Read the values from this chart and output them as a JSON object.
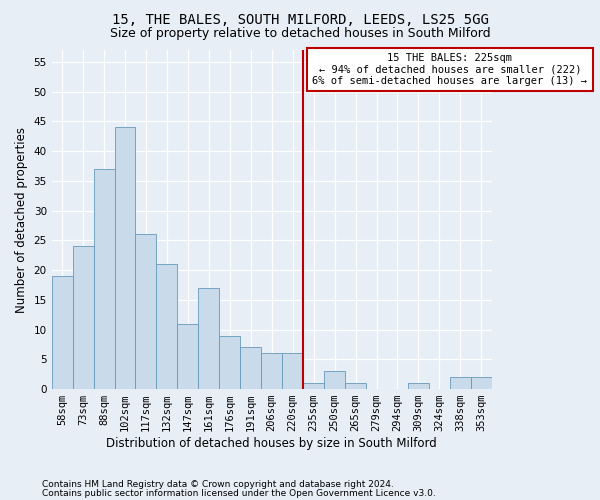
{
  "title1": "15, THE BALES, SOUTH MILFORD, LEEDS, LS25 5GG",
  "title2": "Size of property relative to detached houses in South Milford",
  "xlabel": "Distribution of detached houses by size in South Milford",
  "ylabel": "Number of detached properties",
  "categories": [
    "58sqm",
    "73sqm",
    "88sqm",
    "102sqm",
    "117sqm",
    "132sqm",
    "147sqm",
    "161sqm",
    "176sqm",
    "191sqm",
    "206sqm",
    "220sqm",
    "235sqm",
    "250sqm",
    "265sqm",
    "279sqm",
    "294sqm",
    "309sqm",
    "324sqm",
    "338sqm",
    "353sqm"
  ],
  "values": [
    19,
    24,
    37,
    44,
    26,
    21,
    11,
    17,
    9,
    7,
    6,
    6,
    1,
    3,
    1,
    0,
    0,
    1,
    0,
    2,
    2
  ],
  "bar_color": "#c9daea",
  "bar_edge_color": "#6699bb",
  "vline_x_idx": 11.5,
  "vline_color": "#bb0000",
  "annotation_text": "15 THE BALES: 225sqm\n← 94% of detached houses are smaller (222)\n6% of semi-detached houses are larger (13) →",
  "annotation_box_color": "#bb0000",
  "ylim": [
    0,
    57
  ],
  "yticks": [
    0,
    5,
    10,
    15,
    20,
    25,
    30,
    35,
    40,
    45,
    50,
    55
  ],
  "footer1": "Contains HM Land Registry data © Crown copyright and database right 2024.",
  "footer2": "Contains public sector information licensed under the Open Government Licence v3.0.",
  "bg_color": "#e8eef6",
  "plot_bg_color": "#e8eef6",
  "grid_color": "#ffffff",
  "title1_fontsize": 10,
  "title2_fontsize": 9,
  "tick_fontsize": 7.5,
  "ylabel_fontsize": 8.5,
  "xlabel_fontsize": 8.5,
  "footer_fontsize": 6.5
}
